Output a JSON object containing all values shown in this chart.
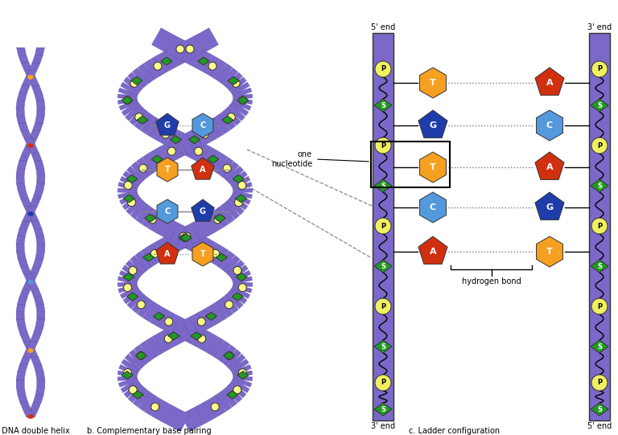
{
  "bg_color": "#ffffff",
  "purple": "#7B68C8",
  "purple_dark": "#5E50A0",
  "orange": "#F5A020",
  "red": "#D03010",
  "blue_dark": "#1E3DAA",
  "blue_light": "#5599DD",
  "green": "#229922",
  "yellow": "#F0F060",
  "label_a": "a. DNA double helix",
  "label_b": "b. Complementary base pairing",
  "label_c": "c. Ladder configuration",
  "note_nucleotide": "one\nnucleotide",
  "note_hbond": "hydrogen bond",
  "fig_w": 7.68,
  "fig_h": 5.41,
  "dpi": 100
}
